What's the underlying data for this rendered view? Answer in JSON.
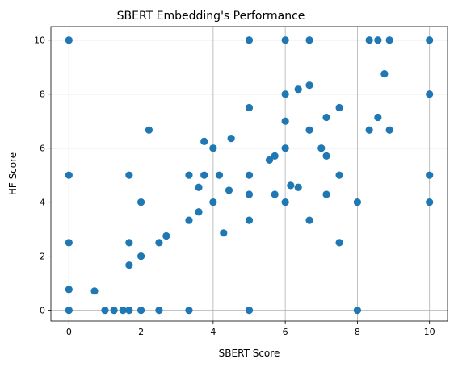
{
  "chart_data": {
    "type": "scatter",
    "title": "SBERT Embedding's Performance",
    "xlabel": "SBERT Score",
    "ylabel": "HF Score",
    "xlim": [
      -0.5,
      10.5
    ],
    "ylim": [
      -0.4,
      10.5
    ],
    "xticks": [
      0,
      2,
      4,
      6,
      8,
      10
    ],
    "yticks": [
      0,
      2,
      4,
      6,
      8,
      10
    ],
    "grid": true,
    "marker_color": "#1f77b4",
    "points": [
      [
        0,
        10
      ],
      [
        0,
        5
      ],
      [
        0,
        2.5
      ],
      [
        0,
        0.77
      ],
      [
        0,
        0
      ],
      [
        0.71,
        0.71
      ],
      [
        1,
        0
      ],
      [
        1.25,
        0
      ],
      [
        1.5,
        0
      ],
      [
        1.67,
        0
      ],
      [
        2,
        0
      ],
      [
        2.5,
        0
      ],
      [
        1.67,
        1.67
      ],
      [
        1.67,
        2.5
      ],
      [
        1.67,
        5
      ],
      [
        2,
        2
      ],
      [
        2,
        4
      ],
      [
        2.22,
        6.67
      ],
      [
        2.5,
        2.5
      ],
      [
        2.7,
        2.75
      ],
      [
        3.33,
        3.33
      ],
      [
        3.33,
        5
      ],
      [
        3.33,
        0
      ],
      [
        3.6,
        4.55
      ],
      [
        3.6,
        3.64
      ],
      [
        3.75,
        5
      ],
      [
        3.75,
        6.25
      ],
      [
        4,
        4
      ],
      [
        4,
        6
      ],
      [
        4.17,
        5
      ],
      [
        4.29,
        2.86
      ],
      [
        4.44,
        4.44
      ],
      [
        4.5,
        6.36
      ],
      [
        5,
        10
      ],
      [
        5,
        7.5
      ],
      [
        5,
        5
      ],
      [
        5,
        4.29
      ],
      [
        5,
        3.33
      ],
      [
        5,
        0
      ],
      [
        5.56,
        5.56
      ],
      [
        5.71,
        4.29
      ],
      [
        5.71,
        5.71
      ],
      [
        6,
        10
      ],
      [
        6,
        8
      ],
      [
        6,
        7
      ],
      [
        6,
        6
      ],
      [
        6,
        4
      ],
      [
        6.15,
        4.62
      ],
      [
        6.36,
        8.18
      ],
      [
        6.36,
        4.55
      ],
      [
        6.67,
        10
      ],
      [
        6.67,
        8.33
      ],
      [
        6.67,
        6.67
      ],
      [
        6.67,
        3.33
      ],
      [
        7,
        6
      ],
      [
        7.14,
        7.14
      ],
      [
        7.14,
        5.71
      ],
      [
        7.14,
        4.29
      ],
      [
        7.5,
        7.5
      ],
      [
        7.5,
        5
      ],
      [
        7.5,
        2.5
      ],
      [
        8,
        4
      ],
      [
        8,
        0
      ],
      [
        8.33,
        10
      ],
      [
        8.33,
        6.67
      ],
      [
        8.57,
        10
      ],
      [
        8.57,
        7.14
      ],
      [
        8.75,
        8.75
      ],
      [
        8.89,
        10
      ],
      [
        8.89,
        6.67
      ],
      [
        10,
        10
      ],
      [
        10,
        8
      ],
      [
        10,
        5
      ],
      [
        10,
        4
      ]
    ]
  }
}
